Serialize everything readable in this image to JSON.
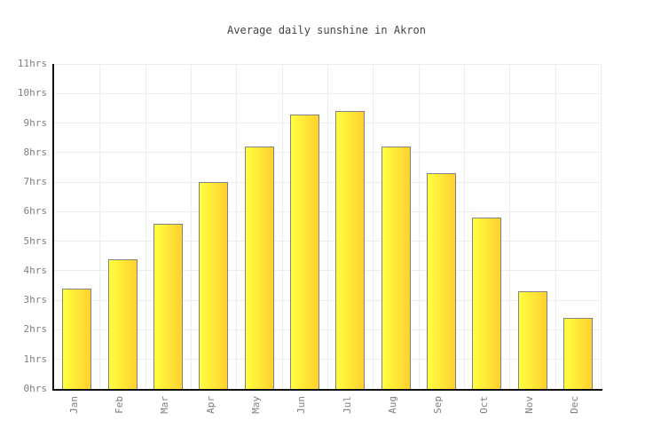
{
  "chart_data": {
    "type": "bar",
    "title": "Average daily sunshine in Akron",
    "categories": [
      "Jan",
      "Feb",
      "Mar",
      "Apr",
      "May",
      "Jun",
      "Jul",
      "Aug",
      "Sep",
      "Oct",
      "Nov",
      "Dec"
    ],
    "values": [
      3.4,
      4.4,
      5.6,
      7.0,
      8.2,
      9.3,
      9.4,
      8.2,
      7.3,
      5.8,
      3.3,
      2.4
    ],
    "unit": "hrs",
    "ytick_suffix": "hrs",
    "ytick_step": 1,
    "ylim": [
      0,
      11
    ],
    "xlabel": "",
    "ylabel": "",
    "grid": true,
    "legend_position": "none",
    "colors": {
      "bar_gradient_left": "#ffff3f",
      "bar_gradient_right": "#ffd02f",
      "bar_border": "#828282",
      "axis": "#111111",
      "gridline": "#ededed",
      "tick_label": "#808080",
      "title": "#444444",
      "background": "#ffffff"
    }
  }
}
